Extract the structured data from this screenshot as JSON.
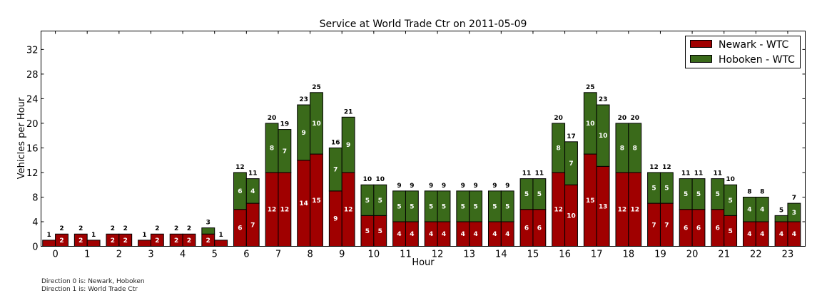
{
  "chart_data": {
    "type": "bar",
    "stacked": true,
    "grouped_by": "direction",
    "title": "Service at World Trade Ctr on 2011-05-09",
    "xlabel": "Hour",
    "ylabel": "Vehicles per Hour",
    "ylim": [
      0,
      35
    ],
    "xlim": [
      -0.45,
      23.55
    ],
    "yticks": [
      0,
      4,
      8,
      12,
      16,
      20,
      24,
      28,
      32
    ],
    "categories": [
      "0",
      "1",
      "2",
      "3",
      "4",
      "5",
      "6",
      "7",
      "8",
      "9",
      "10",
      "11",
      "12",
      "13",
      "14",
      "15",
      "16",
      "17",
      "18",
      "19",
      "20",
      "21",
      "22",
      "23"
    ],
    "legend_position": "top-right",
    "series": [
      {
        "name": "Newark - WTC",
        "color": "#a00000",
        "direction0": [
          1,
          2,
          2,
          1,
          2,
          2,
          6,
          12,
          14,
          9,
          5,
          4,
          4,
          4,
          4,
          6,
          12,
          15,
          12,
          7,
          6,
          6,
          4,
          4
        ],
        "direction1": [
          2,
          1,
          2,
          2,
          2,
          1,
          7,
          12,
          15,
          12,
          5,
          4,
          4,
          4,
          4,
          6,
          10,
          13,
          12,
          7,
          6,
          5,
          4,
          4
        ]
      },
      {
        "name": "Hoboken - WTC",
        "color": "#3a6a1a",
        "direction0": [
          0,
          0,
          0,
          0,
          0,
          1,
          6,
          8,
          9,
          7,
          5,
          5,
          5,
          5,
          5,
          5,
          8,
          10,
          8,
          5,
          5,
          5,
          4,
          1
        ],
        "direction1": [
          0,
          0,
          0,
          0,
          0,
          0,
          4,
          7,
          10,
          9,
          5,
          5,
          5,
          5,
          5,
          5,
          7,
          10,
          8,
          5,
          5,
          5,
          4,
          3
        ]
      }
    ],
    "totals": {
      "direction0": [
        1,
        2,
        2,
        1,
        2,
        3,
        12,
        20,
        23,
        16,
        10,
        9,
        9,
        9,
        9,
        11,
        20,
        25,
        20,
        12,
        11,
        11,
        8,
        5
      ],
      "direction1": [
        2,
        1,
        2,
        2,
        2,
        1,
        11,
        19,
        25,
        21,
        10,
        9,
        9,
        9,
        9,
        11,
        17,
        23,
        20,
        12,
        11,
        10,
        8,
        7
      ]
    }
  },
  "footnotes": {
    "line1": "Direction 0 is: Newark, Hoboken",
    "line2": "Direction 1 is: World Trade Ctr"
  }
}
